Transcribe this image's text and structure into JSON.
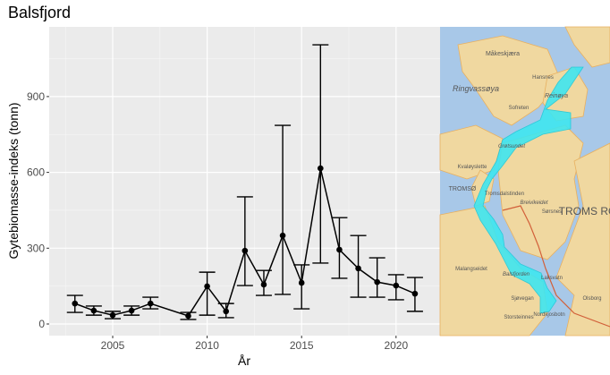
{
  "chart_data": {
    "type": "line",
    "title": "Balsfjord",
    "xlabel": "År",
    "ylabel": "Gytebiomasse-indeks (tonn)",
    "xlim": [
      2002.4,
      2022.9
    ],
    "ylim": [
      -50,
      1160
    ],
    "xticks": [
      2005,
      2010,
      2015,
      2020
    ],
    "yticks": [
      0,
      300,
      600,
      900
    ],
    "grid": true,
    "error_bars": true,
    "x": [
      2003,
      2004,
      2005,
      2006,
      2007,
      2009,
      2010,
      2011,
      2012,
      2013,
      2014,
      2015,
      2016,
      2017,
      2018,
      2019,
      2020,
      2021
    ],
    "y": [
      81,
      53,
      35,
      53,
      81,
      32,
      149,
      50,
      290,
      156,
      350,
      163,
      616,
      294,
      220,
      166,
      152,
      120
    ],
    "lower": [
      46,
      35,
      21,
      35,
      60,
      18,
      35,
      25,
      152,
      113,
      117,
      60,
      241,
      181,
      106,
      106,
      96,
      50
    ],
    "upper": [
      113,
      71,
      50,
      71,
      106,
      46,
      205,
      81,
      503,
      212,
      786,
      234,
      1105,
      421,
      350,
      262,
      195,
      184
    ]
  },
  "map": {
    "labels": [
      "Måkeskjæra",
      "Ringvassøya",
      "Hansnes",
      "Reinøya",
      "Sofreten",
      "Grøtsundet",
      "Kvaløyslette",
      "TROMSØ",
      "Tromsdalstinden",
      "Breivikeidet",
      "Sørsnes",
      "TROMS ROMSA",
      "Malangseidet",
      "Balsfjorden",
      "Laksvatn",
      "Sjøvegan",
      "Storsteinnes",
      "Nordkjosbotn",
      "Olsborg"
    ],
    "water_color": "#a8c8e8",
    "land_color": "#f0d8a0",
    "fjord_highlight_color": "#3fe6f0"
  }
}
